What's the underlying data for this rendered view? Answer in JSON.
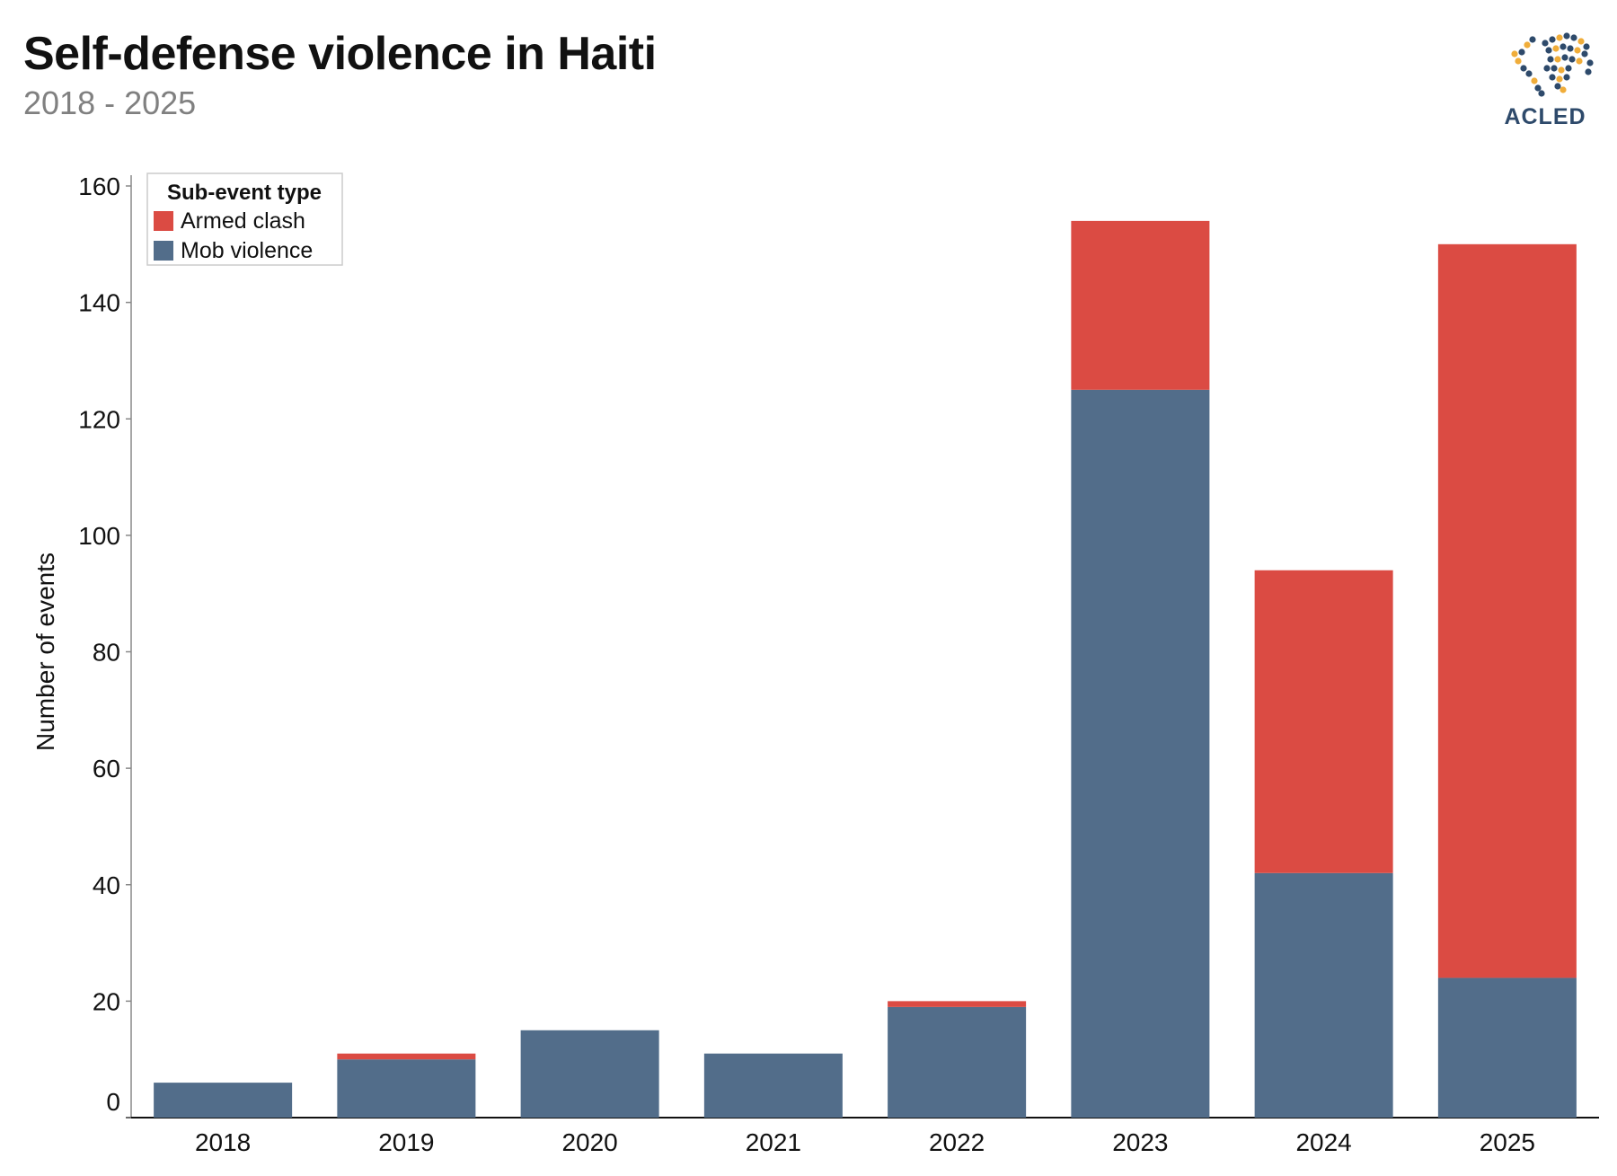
{
  "header": {
    "title": "Self-defense violence in Haiti",
    "subtitle": "2018 - 2025",
    "logo_text": "ACLED"
  },
  "chart_data": {
    "type": "bar",
    "stacked": true,
    "categories": [
      "2018",
      "2019",
      "2020",
      "2021",
      "2022",
      "2023",
      "2024",
      "2025"
    ],
    "series": [
      {
        "name": "Mob violence",
        "color": "#526d8a",
        "values": [
          6,
          10,
          15,
          11,
          19,
          125,
          42,
          24
        ]
      },
      {
        "name": "Armed clash",
        "color": "#db4b43",
        "values": [
          0,
          1,
          0,
          0,
          1,
          29,
          52,
          126
        ]
      }
    ],
    "legend": {
      "title": "Sub-event type",
      "order": [
        "Armed clash",
        "Mob violence"
      ],
      "placement": "top-left"
    },
    "ylabel": "Number of events",
    "xlabel": "",
    "ylim": [
      0,
      160
    ],
    "yticks": [
      0,
      20,
      40,
      60,
      80,
      100,
      120,
      140,
      160
    ],
    "grid": false
  }
}
